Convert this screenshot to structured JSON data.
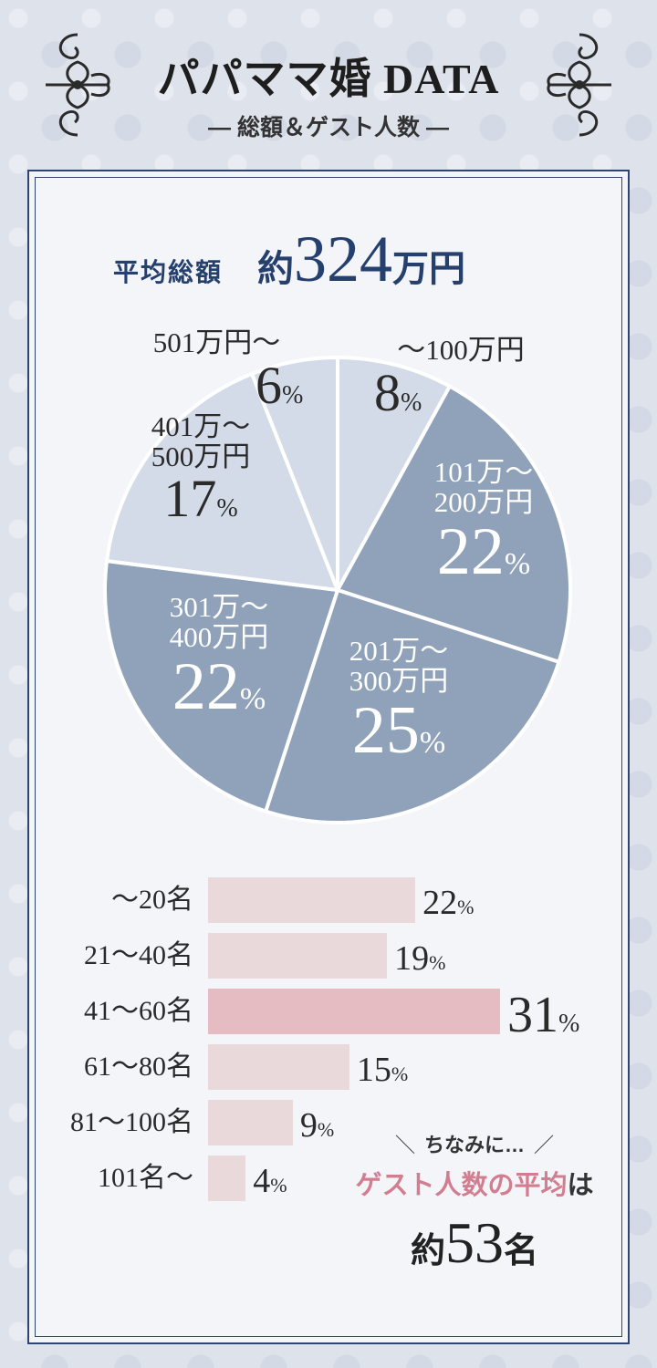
{
  "header": {
    "title": "パパママ婚 DATA",
    "subtitle": "― 総額＆ゲスト人数 ―"
  },
  "average_total": {
    "label": "平均総額",
    "prefix": "約",
    "value": "324",
    "unit": "万円"
  },
  "chart_data": [
    {
      "type": "pie",
      "slices": [
        {
          "label": "～100万円",
          "value": 8
        },
        {
          "label": "101万～200万円",
          "value": 22
        },
        {
          "label": "201万～300万円",
          "value": 25
        },
        {
          "label": "301万～400万円",
          "value": 22
        },
        {
          "label": "401万～500万円",
          "value": 17
        },
        {
          "label": "501万円～",
          "value": 6
        }
      ],
      "colors": {
        "light": "#d3dbe8",
        "dark": "#8fa2b9"
      },
      "unit": "%"
    },
    {
      "type": "bar",
      "orientation": "horizontal",
      "categories": [
        "～20名",
        "21～40名",
        "41～60名",
        "61～80名",
        "81～100名",
        "101名～"
      ],
      "values": [
        22,
        19,
        31,
        15,
        9,
        4
      ],
      "highlight": "41～60名",
      "unit": "%",
      "colors": {
        "bar": "#ead9db",
        "highlight": "#e5bcc2"
      }
    }
  ],
  "pie_labels": [
    {
      "range": "～100万円",
      "range2": "",
      "pct": "8"
    },
    {
      "range": "101万～",
      "range2": "200万円",
      "pct": "22"
    },
    {
      "range": "201万～",
      "range2": "300万円",
      "pct": "25"
    },
    {
      "range": "301万～",
      "range2": "400万円",
      "pct": "22"
    },
    {
      "range": "401万～",
      "range2": "500万円",
      "pct": "17"
    },
    {
      "range": "501万円～",
      "range2": "",
      "pct": "6"
    }
  ],
  "percent_sign": "%",
  "guest_note": {
    "lead": "ちなみに…",
    "highlight": "ゲスト人数の平均",
    "particle": "は",
    "prefix": "約",
    "value": "53",
    "unit": "名"
  }
}
